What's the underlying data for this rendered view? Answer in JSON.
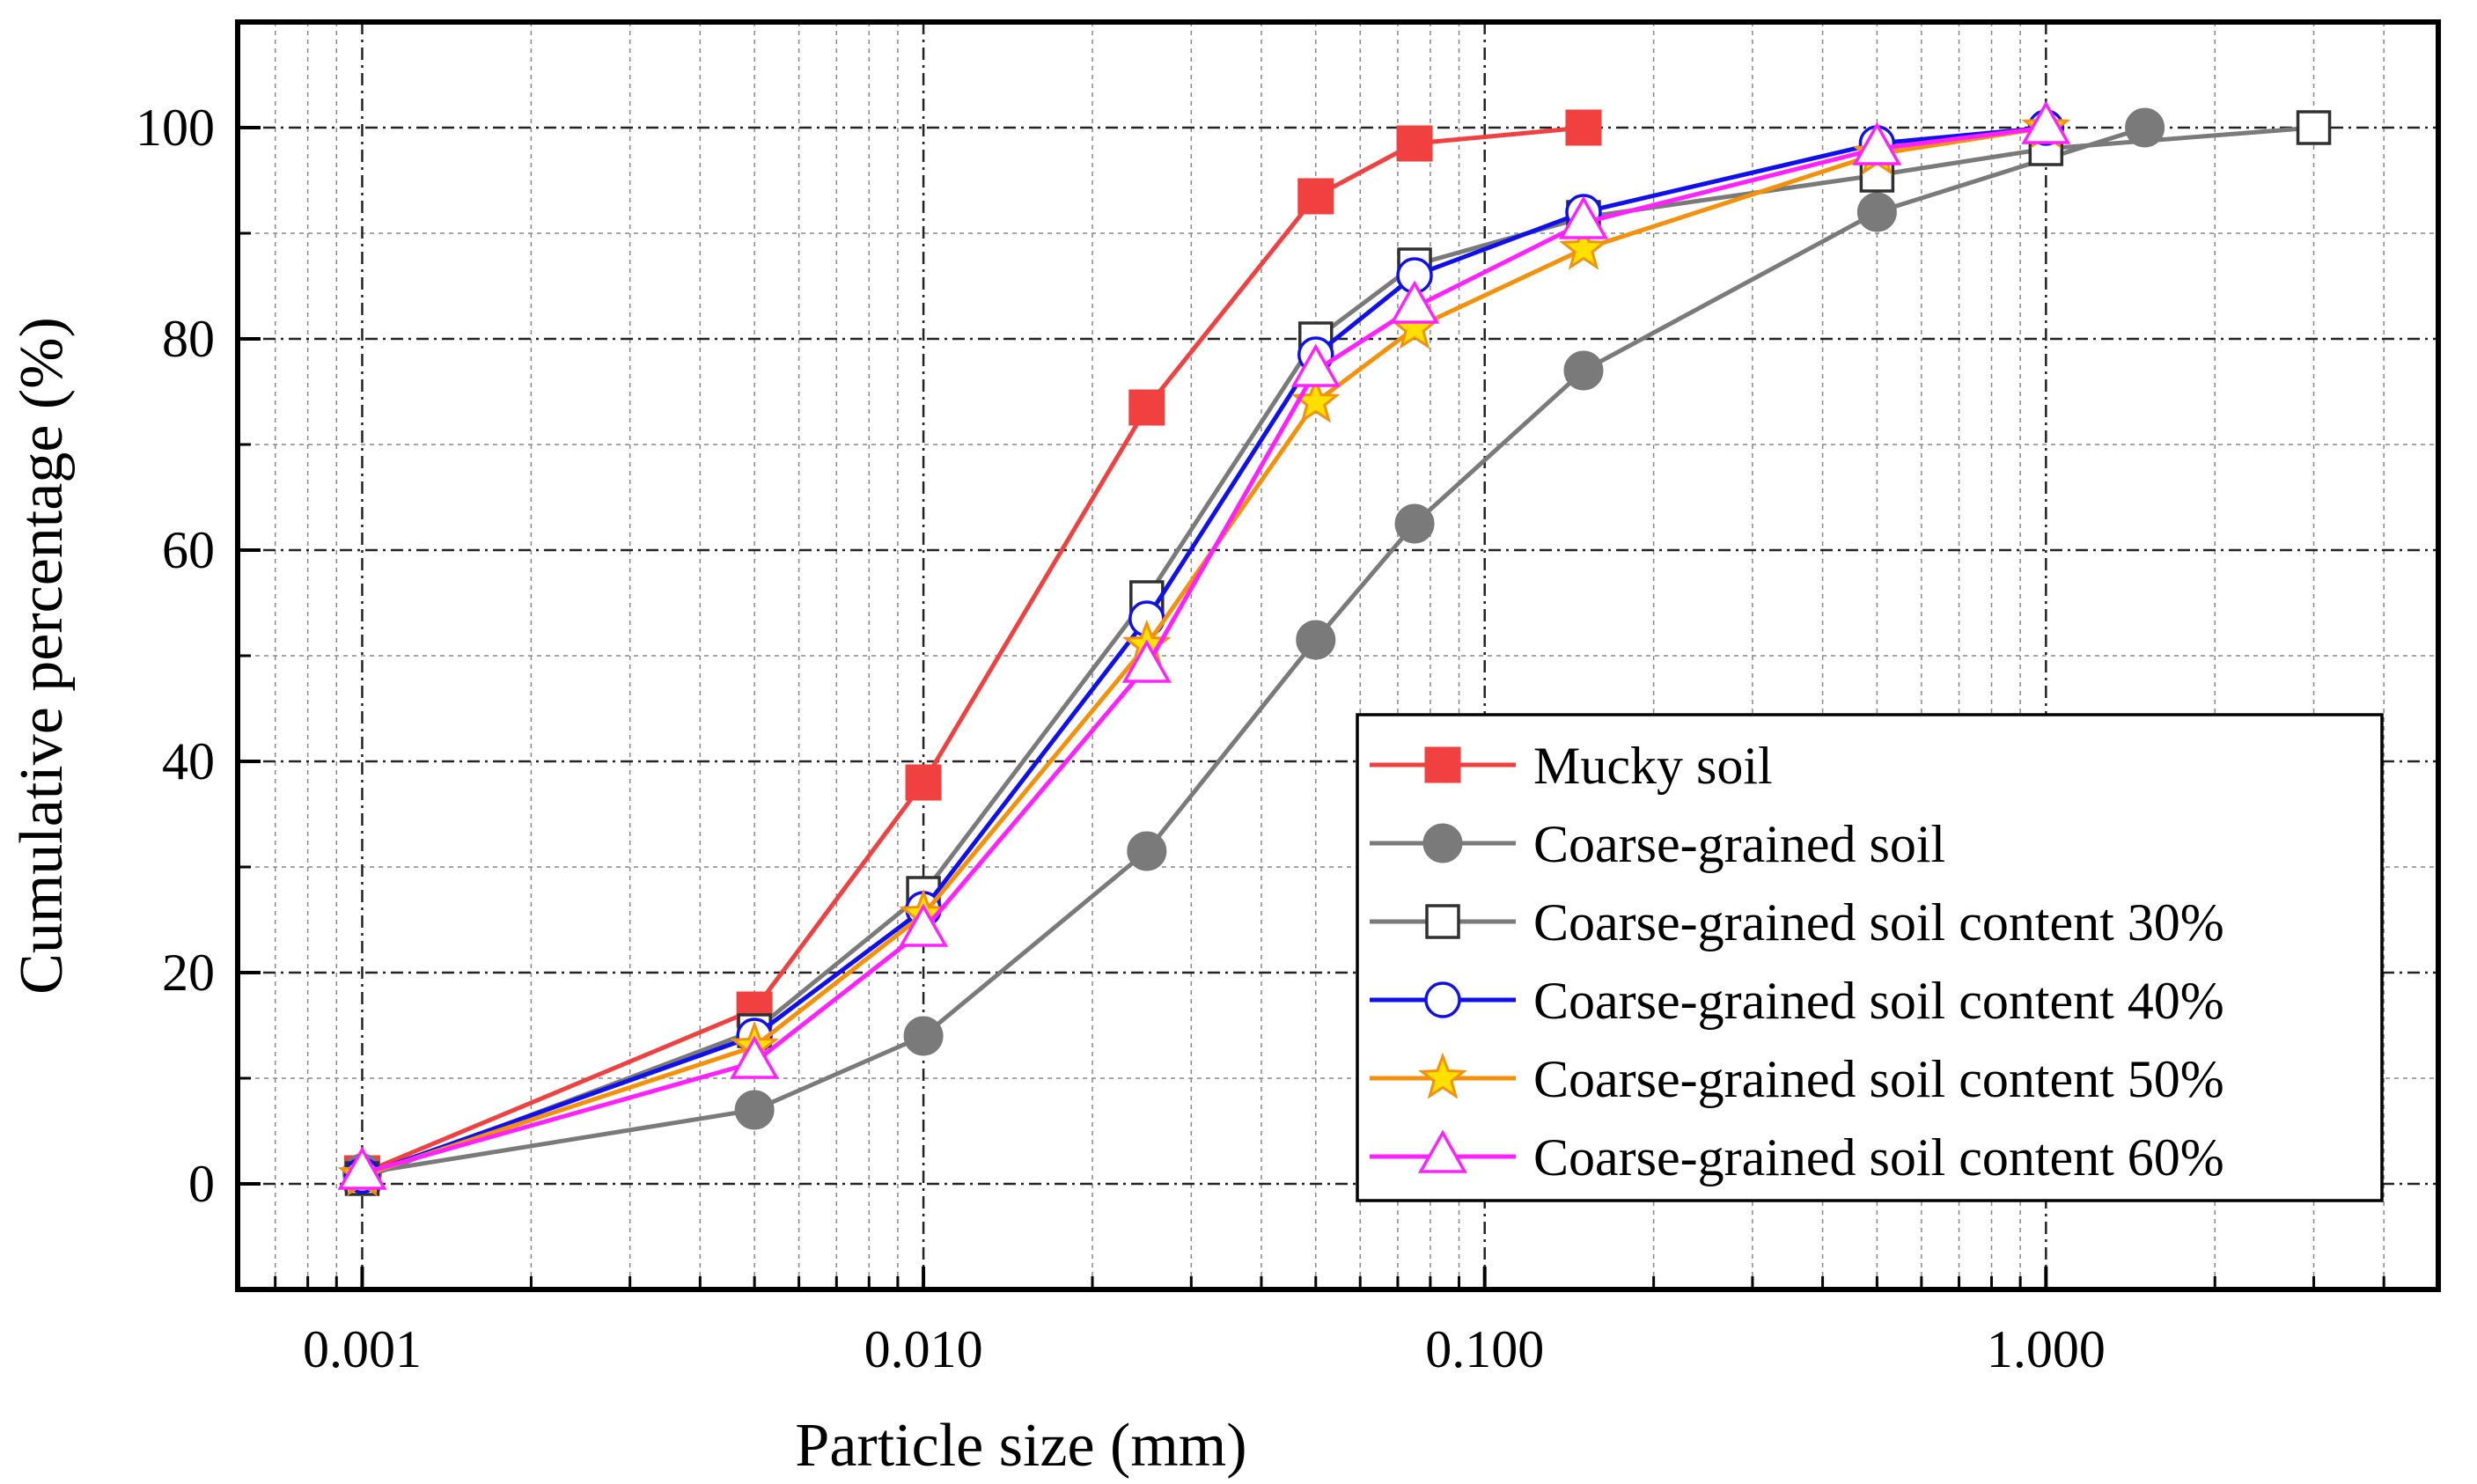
{
  "chart_data": {
    "type": "line",
    "xscale": "log",
    "xlabel": "Particle size (mm)",
    "ylabel": "Cumulative percentage (%)",
    "xlim": [
      0.0006,
      5
    ],
    "ylim": [
      -10,
      110
    ],
    "grid": true,
    "legend_position": "bottom-right",
    "x_ticks": [
      {
        "value": 0.001,
        "label": "0.001"
      },
      {
        "value": 0.01,
        "label": "0.010"
      },
      {
        "value": 0.1,
        "label": "0.100"
      },
      {
        "value": 1,
        "label": "1.000"
      }
    ],
    "y_ticks": [
      {
        "value": 0,
        "label": "0"
      },
      {
        "value": 20,
        "label": "20"
      },
      {
        "value": 40,
        "label": "40"
      },
      {
        "value": 60,
        "label": "60"
      },
      {
        "value": 80,
        "label": "80"
      },
      {
        "value": 100,
        "label": "100"
      }
    ],
    "series": [
      {
        "name": "Mucky soil",
        "color": "#f04040",
        "marker": "square-filled",
        "x": [
          0.001,
          0.005,
          0.01,
          0.025,
          0.05,
          0.075,
          0.15
        ],
        "y": [
          1,
          16.5,
          38,
          73.5,
          93.5,
          98.5,
          100
        ]
      },
      {
        "name": "Coarse-grained soil",
        "color": "#7a7a7a",
        "marker": "circle-filled",
        "x": [
          0.001,
          0.005,
          0.01,
          0.025,
          0.05,
          0.075,
          0.15,
          0.5,
          1.5
        ],
        "y": [
          1,
          7,
          14,
          31.5,
          51.5,
          62.5,
          77,
          92,
          100
        ]
      },
      {
        "name": "Coarse-grained soil content 30%",
        "color": "#7a7a7a",
        "marker": "square-open",
        "x": [
          0.001,
          0.005,
          0.01,
          0.025,
          0.05,
          0.075,
          0.15,
          0.5,
          1,
          3
        ],
        "y": [
          0.5,
          14.5,
          27.5,
          55.5,
          80,
          87,
          91.5,
          95.5,
          98,
          100
        ]
      },
      {
        "name": "Coarse-grained soil content 40%",
        "color": "#1010ee",
        "marker": "circle-open",
        "x": [
          0.001,
          0.005,
          0.01,
          0.025,
          0.05,
          0.075,
          0.15,
          0.5,
          1
        ],
        "y": [
          0.8,
          14,
          26,
          53.5,
          78.5,
          86,
          92,
          98.5,
          100
        ]
      },
      {
        "name": "Coarse-grained soil content 50%",
        "color": "#f5900a",
        "marker": "star",
        "x": [
          0.001,
          0.005,
          0.01,
          0.025,
          0.05,
          0.075,
          0.15,
          0.5,
          1
        ],
        "y": [
          0.8,
          13,
          25.5,
          51,
          74,
          81,
          88.5,
          97.5,
          100
        ]
      },
      {
        "name": "Coarse-grained soil content 60%",
        "color": "#ff20ff",
        "marker": "triangle-open",
        "x": [
          0.001,
          0.005,
          0.01,
          0.025,
          0.05,
          0.075,
          0.15,
          0.5,
          1
        ],
        "y": [
          1,
          11.5,
          24,
          49,
          77,
          83,
          91,
          98,
          100
        ]
      }
    ]
  }
}
